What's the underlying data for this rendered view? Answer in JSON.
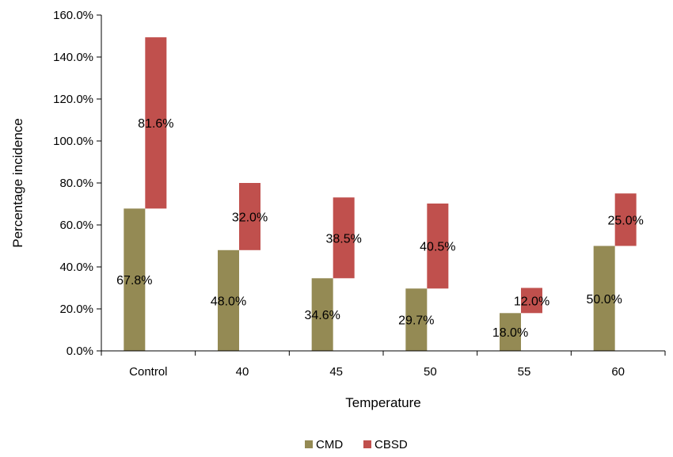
{
  "chart_data": {
    "type": "bar",
    "stacked": true,
    "categories": [
      "Control",
      "40",
      "45",
      "50",
      "55",
      "60"
    ],
    "series": [
      {
        "name": "CMD",
        "color": "#948a54",
        "values": [
          67.8,
          48.0,
          34.6,
          29.7,
          18.0,
          50.0
        ],
        "labels": [
          "67.8%",
          "48.0%",
          "34.6%",
          "29.7%",
          "18.0%",
          "50.0%"
        ]
      },
      {
        "name": "CBSD",
        "color": "#c0504d",
        "values": [
          81.6,
          32.0,
          38.5,
          40.5,
          12.0,
          25.0
        ],
        "labels": [
          "81.6%",
          "32.0%",
          "38.5%",
          "40.5%",
          "12.0%",
          "25.0%"
        ]
      }
    ],
    "xlabel": "Temperature",
    "ylabel": "Percentage incidence",
    "ylim": [
      0,
      160
    ],
    "yticks": [
      0,
      20,
      40,
      60,
      80,
      100,
      120,
      140,
      160
    ],
    "ytick_labels": [
      "0.0%",
      "20.0%",
      "40.0%",
      "60.0%",
      "80.0%",
      "100.0%",
      "120.0%",
      "140.0%",
      "160.0%"
    ],
    "grid": false,
    "legend_position": "bottom"
  }
}
